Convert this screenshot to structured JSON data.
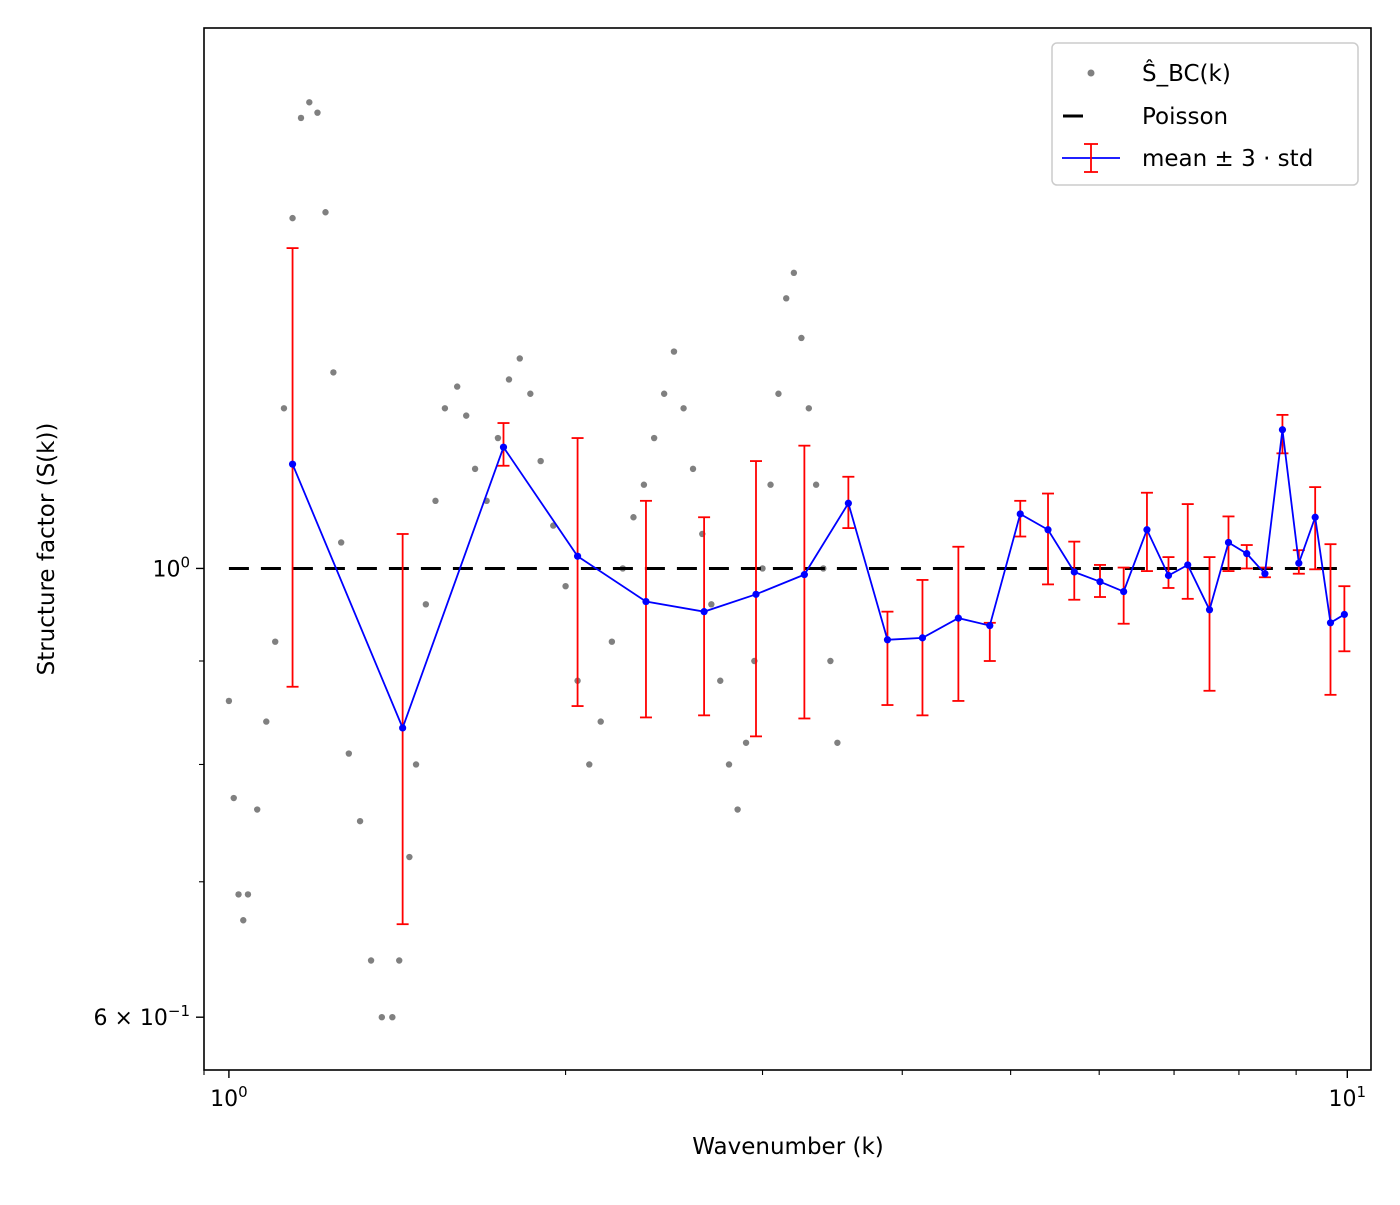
{
  "chart_data": {
    "type": "scatter",
    "xscale": "log",
    "yscale": "log",
    "xlim": [
      0.95,
      10.5
    ],
    "ylim": [
      0.565,
      1.85
    ],
    "xlabel": "Wavenumber (k)",
    "ylabel": "Structure factor (S(k))",
    "xticks": [
      {
        "value": 1,
        "base": "10",
        "exp": "0"
      },
      {
        "value": 10,
        "base": "10",
        "exp": "1"
      }
    ],
    "yticks": [
      {
        "value": 1,
        "label": "10",
        "exp": "0"
      },
      {
        "value": 0.6,
        "label": "6 × 10",
        "exp": "−1"
      }
    ],
    "legend": {
      "position": "upper right",
      "entries": [
        {
          "label": "Ŝ_BC(k)",
          "marker": "gray-dot"
        },
        {
          "label": "Poisson",
          "marker": "black-dash"
        },
        {
          "label": "mean ± 3 · std",
          "marker": "blue-line-red-errorbar"
        }
      ]
    },
    "colors": {
      "scatter": "#808080",
      "poisson": "#000000",
      "mean_line": "#0000ff",
      "errorbar": "#ff0000"
    },
    "poisson": {
      "x": [
        1.0,
        10.0
      ],
      "y": [
        1.0,
        1.0
      ]
    },
    "mean_series": {
      "name": "mean ± 3 · std",
      "x": [
        1.14,
        1.43,
        1.76,
        2.05,
        2.36,
        2.66,
        2.96,
        3.27,
        3.58,
        3.88,
        4.17,
        4.49,
        4.79,
        5.1,
        5.4,
        5.7,
        6.01,
        6.31,
        6.62,
        6.92,
        7.2,
        7.53,
        7.83,
        8.13,
        8.44,
        8.75,
        9.05,
        9.36,
        9.66,
        9.94
      ],
      "y": [
        1.126,
        0.834,
        1.148,
        1.014,
        0.963,
        0.952,
        0.971,
        0.993,
        1.077,
        0.922,
        0.924,
        0.945,
        0.937,
        1.064,
        1.045,
        0.996,
        0.985,
        0.974,
        1.045,
        0.992,
        1.004,
        0.954,
        1.03,
        1.017,
        0.994,
        1.171,
        1.006,
        1.06,
        0.94,
        0.949
      ],
      "err_low": [
        0.874,
        0.667,
        1.124,
        0.855,
        0.844,
        0.846,
        0.826,
        0.843,
        1.047,
        0.856,
        0.846,
        0.86,
        0.9,
        1.037,
        0.982,
        0.965,
        0.968,
        0.939,
        0.997,
        0.978,
        0.966,
        0.87,
        0.997,
        1.0,
        0.99,
        1.14,
        0.994,
        0.999,
        0.866,
        0.91
      ],
      "err_high": [
        1.44,
        1.04,
        1.18,
        1.16,
        1.08,
        1.06,
        1.13,
        1.15,
        1.11,
        0.952,
        0.987,
        1.025,
        0.94,
        1.08,
        1.089,
        1.031,
        1.004,
        1.001,
        1.09,
        1.013,
        1.076,
        1.013,
        1.061,
        1.027,
        1.001,
        1.191,
        1.021,
        1.097,
        1.028,
        0.98
      ]
    },
    "scatter_clusters": [
      {
        "x": [
          1.0,
          1.01,
          1.02,
          1.03,
          1.04,
          1.06,
          1.08,
          1.1,
          1.12,
          1.14,
          1.16,
          1.18,
          1.2,
          1.22,
          1.24,
          1.26,
          1.28,
          1.31,
          1.34,
          1.37,
          1.4,
          1.42,
          1.45,
          1.47,
          1.5,
          1.53,
          1.56,
          1.6,
          1.63,
          1.66,
          1.7,
          1.74,
          1.78,
          1.82,
          1.86,
          1.9,
          1.95,
          2.0,
          2.05,
          2.1,
          2.15,
          2.2,
          2.25,
          2.3,
          2.35,
          2.4,
          2.45,
          2.5,
          2.55,
          2.6,
          2.65,
          2.7,
          2.75,
          2.8,
          2.85,
          2.9,
          2.95,
          3.0,
          3.05,
          3.1,
          3.15,
          3.2,
          3.25,
          3.3,
          3.35,
          3.4,
          3.45,
          3.5
        ],
        "y": [
          0.86,
          0.77,
          0.69,
          0.67,
          0.69,
          0.76,
          0.84,
          0.92,
          1.2,
          1.49,
          1.67,
          1.7,
          1.68,
          1.5,
          1.25,
          1.03,
          0.81,
          0.75,
          0.64,
          0.6,
          0.6,
          0.64,
          0.72,
          0.8,
          0.96,
          1.08,
          1.2,
          1.23,
          1.19,
          1.12,
          1.08,
          1.16,
          1.24,
          1.27,
          1.22,
          1.13,
          1.05,
          0.98,
          0.88,
          0.8,
          0.84,
          0.92,
          1.0,
          1.06,
          1.1,
          1.16,
          1.22,
          1.28,
          1.2,
          1.12,
          1.04,
          0.96,
          0.88,
          0.8,
          0.76,
          0.82,
          0.9,
          1.0,
          1.1,
          1.22,
          1.36,
          1.4,
          1.3,
          1.2,
          1.1,
          1.0,
          0.9,
          0.82
        ]
      }
    ]
  }
}
